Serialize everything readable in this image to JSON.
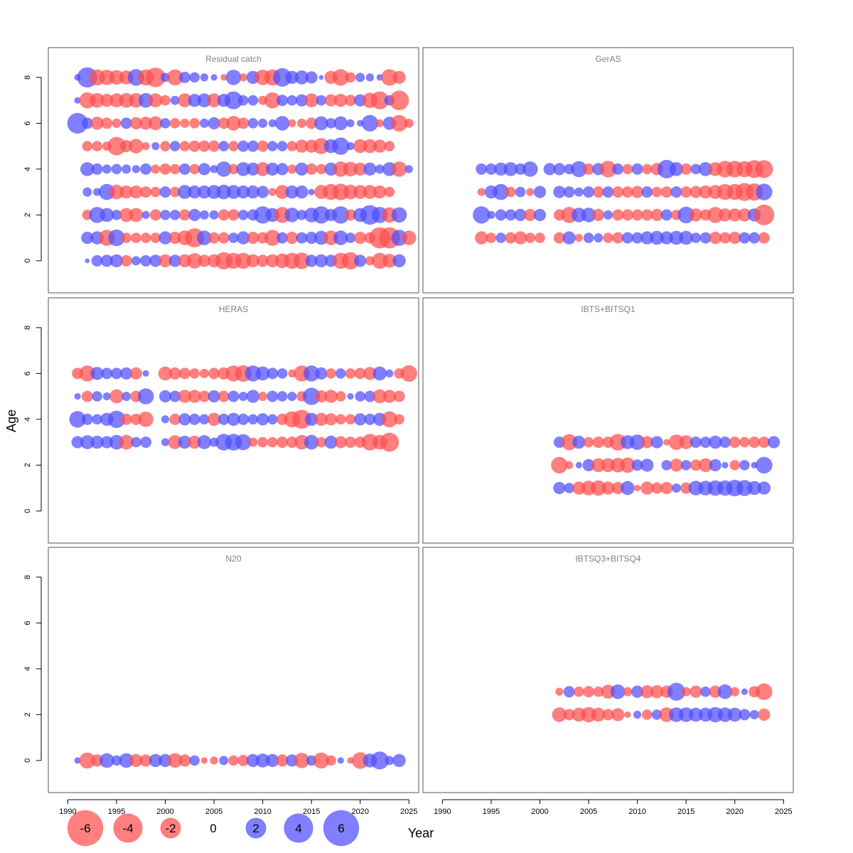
{
  "colors": {
    "negative": "#ff4d4d",
    "positive": "#4d4dff",
    "frame": "#555555"
  },
  "chart_data": {
    "type": "scatter",
    "encoding": "bubble",
    "xlabel": "Year",
    "ylabel": "Age",
    "xlim": [
      1988,
      2026
    ],
    "ylim": [
      -1.4,
      9.3
    ],
    "x_ticks": [
      "1990",
      "1995",
      "2000",
      "2005",
      "2010",
      "2015",
      "2020",
      "2025"
    ],
    "y_ticks": [
      "0",
      "2",
      "4",
      "6",
      "8"
    ],
    "legend": {
      "placement": "bottom",
      "values": [
        -6,
        -4,
        -2,
        0,
        2,
        4,
        6
      ],
      "labels": [
        "-6",
        "-4",
        "-2",
        "0",
        "2",
        "4",
        "6"
      ]
    },
    "panels": [
      {
        "title": "Residual catch",
        "ages": [
          {
            "age": 8,
            "start": 1991,
            "values": [
              0.2,
              1.9,
              -1.2,
              -1.1,
              -1.0,
              -0.9,
              1.3,
              -1.2,
              -1.8,
              0.4,
              -1.2,
              0.6,
              0.5,
              0.3,
              0.2,
              -0.2,
              1.1,
              -0.3,
              0.8,
              -1.1,
              -1.2,
              1.6,
              0.8,
              0.9,
              0.7,
              0.1,
              -0.8,
              -1.3,
              -0.5,
              0.4,
              0.3,
              0.2,
              -1.3,
              -0.8
            ]
          },
          {
            "age": 7,
            "start": 1991,
            "values": [
              0.2,
              -1.2,
              -1.0,
              -0.8,
              -0.9,
              -1.0,
              -1.0,
              1.0,
              -0.9,
              -0.5,
              0.4,
              -0.9,
              0.8,
              0.9,
              -0.9,
              0.8,
              1.5,
              0.5,
              0.5,
              -0.4,
              -1.2,
              0.6,
              0.5,
              0.7,
              -0.9,
              0.5,
              -0.7,
              -0.8,
              -0.6,
              0.7,
              -1.1,
              -1.5,
              0.5,
              -1.8
            ]
          },
          {
            "age": 6,
            "start": 1991,
            "values": [
              2.0,
              0.6,
              -0.8,
              -0.6,
              -0.4,
              0.6,
              -0.7,
              -0.8,
              -0.9,
              0.5,
              -0.5,
              -0.4,
              -0.5,
              0.4,
              0.7,
              -0.6,
              -1.0,
              -0.6,
              0.5,
              0.4,
              0.3,
              1.0,
              -0.3,
              -0.4,
              -0.6,
              0.9,
              0.5,
              0.9,
              0.3,
              0.2,
              1.3,
              -0.3,
              0.8,
              -1.3,
              -0.4
            ]
          },
          {
            "age": 5,
            "start": 1992,
            "values": [
              -0.5,
              -0.5,
              -0.4,
              -1.6,
              -0.7,
              -1.0,
              -0.3,
              0.3,
              -0.5,
              0.5,
              -0.5,
              -0.6,
              -0.6,
              -0.6,
              0.5,
              -0.5,
              0.6,
              0.6,
              -0.6,
              0.5,
              0.5,
              -0.5,
              -0.8,
              -0.8,
              -1.2,
              0.9,
              1.4,
              0.3,
              -0.9,
              -0.9,
              -0.8,
              -0.5
            ]
          },
          {
            "age": 4,
            "start": 1992,
            "values": [
              0.9,
              0.6,
              0.4,
              0.5,
              0.4,
              0.3,
              0.6,
              -0.4,
              -0.6,
              -0.5,
              0.6,
              -0.5,
              0.7,
              0.3,
              1.1,
              -0.5,
              0.9,
              0.8,
              -0.9,
              0.8,
              0.7,
              -0.4,
              0.8,
              -0.6,
              -0.5,
              0.8,
              -1.1,
              -1.0,
              -0.8,
              0.8,
              0.4,
              0.9,
              -1.1,
              0.3
            ]
          },
          {
            "age": 3,
            "start": 1992,
            "values": [
              0.4,
              0.3,
              1.2,
              -1.0,
              -0.8,
              -0.8,
              -0.6,
              -0.5,
              0.6,
              -0.5,
              0.9,
              0.8,
              0.8,
              0.9,
              1.0,
              0.9,
              0.8,
              0.8,
              0.7,
              -0.3,
              -0.9,
              0.8,
              0.8,
              0.2,
              -0.9,
              -1.2,
              -1.3,
              -1.0,
              -0.9,
              -0.9,
              -0.8,
              -0.5
            ]
          },
          {
            "age": 2,
            "start": 1992,
            "values": [
              -0.5,
              1.2,
              0.9,
              0.5,
              -0.9,
              -0.9,
              0.3,
              -0.6,
              0.5,
              0.5,
              -0.6,
              0.7,
              0.4,
              0.4,
              -0.6,
              -0.6,
              0.5,
              0.6,
              1.4,
              0.9,
              -1.2,
              1.0,
              0.5,
              1.0,
              1.4,
              0.7,
              1.4,
              -0.6,
              0.9,
              1.8,
              1.2,
              -1.1,
              1.1
            ]
          },
          {
            "age": 1,
            "start": 1992,
            "values": [
              0.7,
              0.8,
              -1.2,
              1.3,
              -0.5,
              -0.5,
              -0.5,
              -0.5,
              0.8,
              -0.7,
              -1.0,
              -1.7,
              1.0,
              -0.6,
              -0.6,
              0.5,
              0.8,
              -0.7,
              -0.6,
              -1.2,
              0.6,
              -0.7,
              0.6,
              0.7,
              0.9,
              -1.0,
              1.0,
              0.5,
              -0.7,
              -0.6,
              -2.1,
              -2.1,
              1.2,
              -1.0
            ]
          },
          {
            "age": 0,
            "start": 1992,
            "values": [
              0.1,
              0.6,
              0.7,
              0.8,
              -0.6,
              0.4,
              0.6,
              0.7,
              -0.8,
              0.7,
              -0.8,
              -1.1,
              -0.7,
              -0.8,
              -1.4,
              -1.2,
              -1.2,
              -0.8,
              -0.7,
              -0.8,
              -1.0,
              -1.2,
              -1.3,
              0.7,
              0.8,
              0.7,
              -1.2,
              -1.4,
              0.7,
              -0.4,
              -1.2,
              -0.9,
              0.8
            ]
          }
        ]
      },
      {
        "title": "GerAS",
        "ages": [
          {
            "age": 4,
            "start": 1994,
            "values": [
              0.6,
              0.6,
              0.8,
              0.9,
              0.6,
              1.1,
              null,
              0.7,
              0.7,
              0.5,
              1.2,
              -0.6,
              0.7,
              -1.3,
              0.6,
              -0.5,
              0.6,
              -0.5,
              -0.7,
              1.6,
              0.9,
              -0.6,
              0.5,
              0.9,
              -0.9,
              -1.3,
              -1.3,
              -1.2,
              -1.5,
              -1.5
            ]
          },
          {
            "age": 3,
            "start": 1994,
            "values": [
              -0.3,
              0.8,
              1.2,
              -0.5,
              0.5,
              -0.3,
              0.7,
              null,
              0.7,
              0.6,
              0.4,
              0.6,
              -0.6,
              0.6,
              -0.6,
              -0.6,
              -0.7,
              0.6,
              -0.5,
              -0.6,
              0.6,
              -0.6,
              -0.7,
              -0.8,
              -0.9,
              -1.2,
              -1.2,
              -1.5,
              -1.4,
              1.3
            ]
          },
          {
            "age": 2,
            "start": 1994,
            "values": [
              1.4,
              0.3,
              0.6,
              0.6,
              0.7,
              -0.7,
              0.7,
              null,
              -0.6,
              -1.2,
              1.0,
              1.0,
              -0.7,
              0.4,
              -0.6,
              -0.6,
              -0.6,
              -0.6,
              -0.7,
              0.6,
              -0.5,
              1.3,
              -0.8,
              -0.6,
              -1.2,
              -0.8,
              -0.8,
              -0.8,
              0.8,
              -2.0
            ]
          },
          {
            "age": 1,
            "start": 1994,
            "values": [
              -0.8,
              -0.5,
              0.5,
              -0.6,
              -0.8,
              -0.5,
              -0.5,
              null,
              -0.6,
              0.8,
              -0.3,
              0.5,
              0.4,
              -0.5,
              -0.6,
              0.6,
              0.6,
              0.8,
              0.9,
              0.8,
              0.9,
              0.9,
              0.5,
              0.6,
              -0.7,
              -0.6,
              -0.7,
              0.6,
              0.6,
              -0.6
            ]
          }
        ]
      },
      {
        "title": "HERAS",
        "ages": [
          {
            "age": 6,
            "start": 1991,
            "values": [
              -0.6,
              -1.2,
              0.8,
              0.6,
              0.6,
              0.7,
              -0.7,
              0.2,
              null,
              -0.9,
              -0.7,
              -0.6,
              -0.5,
              -0.4,
              -0.6,
              -0.7,
              -1.2,
              -1.3,
              1.2,
              0.9,
              0.6,
              0.5,
              -0.3,
              -1.2,
              1.2,
              0.7,
              -0.5,
              0.5,
              -0.5,
              -0.6,
              -0.8,
              0.9,
              0.3,
              -0.5,
              -1.3
            ]
          },
          {
            "age": 5,
            "start": 1991,
            "values": [
              0.2,
              -0.6,
              0.5,
              0.3,
              -0.9,
              0.4,
              -0.6,
              1.2,
              null,
              0.7,
              0.6,
              -0.8,
              -0.8,
              -0.6,
              0.7,
              -0.6,
              0.6,
              0.4,
              0.8,
              -0.4,
              0.6,
              0.5,
              0.4,
              -0.5,
              1.4,
              -0.7,
              -0.8,
              -0.5,
              0.2,
              0.5,
              0.6,
              -0.9,
              -0.8,
              -0.6
            ]
          },
          {
            "age": 4,
            "start": 1991,
            "values": [
              1.3,
              0.6,
              0.5,
              0.8,
              1.4,
              -0.6,
              -0.6,
              -1.1,
              null,
              0.3,
              -0.6,
              0.7,
              0.6,
              0.5,
              -0.8,
              0.6,
              0.8,
              0.6,
              0.5,
              0.7,
              0.5,
              -0.6,
              -1.2,
              -1.7,
              0.8,
              -0.8,
              -0.7,
              -0.5,
              -0.5,
              0.7,
              0.6,
              0.8,
              -1.2,
              -0.5
            ]
          },
          {
            "age": 3,
            "start": 1991,
            "values": [
              0.7,
              0.9,
              0.8,
              0.7,
              1.0,
              -1.0,
              0.5,
              0.6,
              null,
              0.3,
              -0.9,
              0.8,
              -0.8,
              0.9,
              0.4,
              1.3,
              1.3,
              1.2,
              -0.4,
              -0.5,
              -0.5,
              -0.6,
              -0.6,
              -1.0,
              1.0,
              -0.5,
              0.8,
              -0.7,
              -0.6,
              -0.6,
              -1.3,
              -1.0,
              -1.7
            ]
          }
        ]
      },
      {
        "title": "IBTS+BITSQ1",
        "ages": [
          {
            "age": 3,
            "start": 2002,
            "values": [
              0.6,
              -1.2,
              0.8,
              -0.5,
              -0.6,
              -0.6,
              -1.3,
              0.9,
              1.1,
              -0.7,
              0.7,
              -0.2,
              -1.1,
              -0.9,
              0.6,
              0.6,
              0.8,
              0.6,
              -0.6,
              -0.5,
              -0.6,
              -0.6,
              0.7
            ]
          },
          {
            "age": 2,
            "start": 2002,
            "values": [
              -1.3,
              -0.3,
              0.2,
              0.7,
              -0.9,
              -0.9,
              -1.0,
              -1.1,
              0.6,
              0.8,
              null,
              0.5,
              -0.8,
              0.5,
              -0.6,
              -0.9,
              0.7,
              0.2,
              -0.5,
              0.5,
              0.2,
              1.3
            ]
          },
          {
            "age": 1,
            "start": 2002,
            "values": [
              0.7,
              0.5,
              -0.8,
              -1.0,
              -1.1,
              -0.8,
              -0.7,
              0.9,
              -0.2,
              -0.8,
              -0.6,
              -0.7,
              0.4,
              -0.6,
              1.0,
              1.0,
              1.1,
              1.1,
              1.3,
              1.2,
              0.9,
              0.8
            ]
          }
        ]
      },
      {
        "title": "N20",
        "ages": [
          {
            "age": 0,
            "start": 1991,
            "values": [
              0.2,
              -1.2,
              -0.7,
              1.0,
              0.5,
              1.0,
              -0.8,
              -0.7,
              0.8,
              0.8,
              -1.0,
              -0.7,
              0.5,
              -0.2,
              -0.3,
              0.4,
              -0.5,
              -0.6,
              0.8,
              0.9,
              0.8,
              -0.7,
              0.7,
              -1.1,
              0.5,
              -1.2,
              -0.5,
              0.2,
              -0.2,
              -1.3,
              0.9,
              1.5,
              0.4,
              0.8
            ]
          }
        ]
      },
      {
        "title": "IBTSQ3+BITSQ4",
        "ages": [
          {
            "age": 3,
            "start": 2002,
            "values": [
              -0.3,
              0.6,
              -0.5,
              -0.6,
              -0.5,
              -0.9,
              1.0,
              -0.4,
              0.7,
              -0.8,
              -0.8,
              -0.7,
              1.5,
              -0.4,
              -0.7,
              0.5,
              -0.7,
              1.0,
              -0.4,
              0.2,
              -0.6,
              -1.3
            ]
          },
          {
            "age": 2,
            "start": 2002,
            "values": [
              -1.0,
              -0.6,
              -0.9,
              -1.1,
              -0.9,
              -0.6,
              -0.8,
              -0.2,
              0.3,
              -0.5,
              0.5,
              -1.0,
              1.0,
              1.0,
              0.9,
              0.9,
              1.1,
              1.0,
              0.9,
              0.6,
              0.4,
              -0.7
            ]
          }
        ]
      }
    ]
  }
}
